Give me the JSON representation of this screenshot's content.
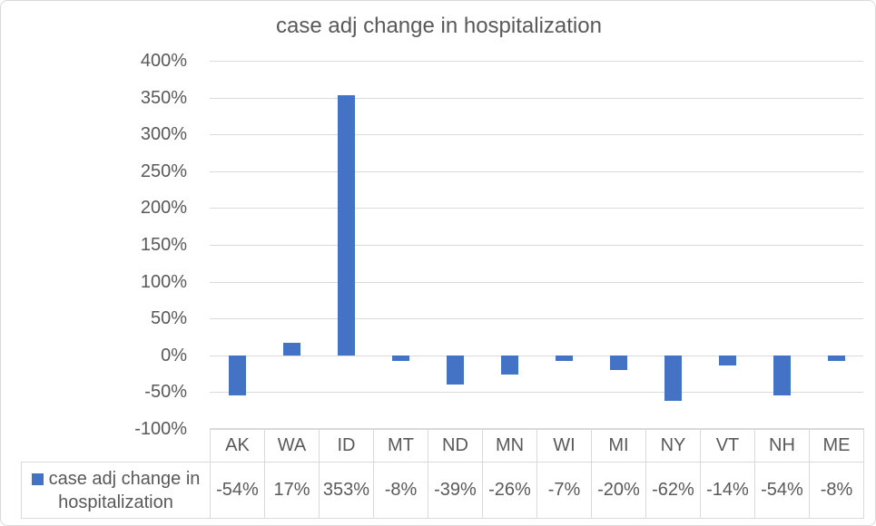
{
  "chart_data": {
    "type": "bar",
    "title": "case adj change in hospitalization",
    "categories": [
      "AK",
      "WA",
      "ID",
      "MT",
      "ND",
      "MN",
      "WI",
      "MI",
      "NY",
      "VT",
      "NH",
      "ME"
    ],
    "series": [
      {
        "name": "case adj change in hospitalization",
        "values": [
          -54,
          17,
          353,
          -8,
          -39,
          -26,
          -7,
          -20,
          -62,
          -14,
          -54,
          -8
        ]
      }
    ],
    "value_labels": [
      "-54%",
      "17%",
      "353%",
      "-8%",
      "-39%",
      "-26%",
      "-7%",
      "-20%",
      "-62%",
      "-14%",
      "-54%",
      "-8%"
    ],
    "xlabel": "",
    "ylabel": "",
    "ylim": [
      -100,
      400
    ],
    "y_tick_labels": [
      "400%",
      "350%",
      "300%",
      "250%",
      "200%",
      "150%",
      "100%",
      "50%",
      "0%",
      "-50%",
      "-100%"
    ],
    "grid": true,
    "legend_position": "data-table-left",
    "colors": {
      "bar": "#4472C4",
      "gridline": "#D9D9D9",
      "text": "#595959",
      "table_border": "#D9D9D9"
    }
  }
}
